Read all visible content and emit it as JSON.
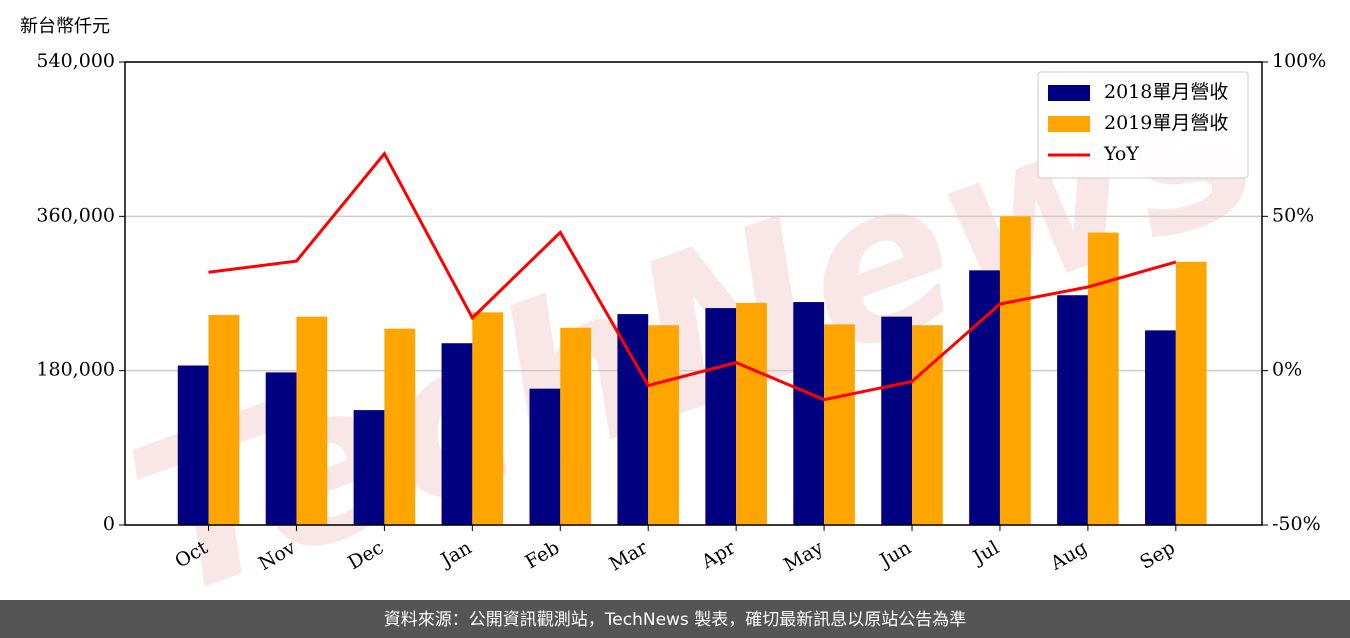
{
  "chart_data": {
    "type": "bar_line",
    "y_label": "新台幣仟元",
    "watermark": "TechNews",
    "source": "資料來源：公開資訊觀測站，TechNews 製表，確切最新訊息以原站公告為準",
    "categories": [
      "Oct",
      "Nov",
      "Dec",
      "Jan",
      "Feb",
      "Mar",
      "Apr",
      "May",
      "Jun",
      "Jul",
      "Aug",
      "Sep"
    ],
    "series": [
      {
        "name": "2018單月營收",
        "color": "#000080",
        "values": [
          186000,
          178000,
          134000,
          212000,
          159000,
          246000,
          253000,
          260000,
          243000,
          297000,
          268000,
          227000
        ]
      },
      {
        "name": "2019單月營收",
        "color": "#ffa500",
        "values": [
          245000,
          243000,
          229000,
          248000,
          230000,
          233000,
          259000,
          234000,
          233000,
          360000,
          341000,
          307000
        ]
      },
      {
        "name": "YoY",
        "color": "#ff0000",
        "type": "line",
        "axis": "y2",
        "values": [
          31.9,
          35.5,
          70.3,
          17.1,
          44.8,
          -4.8,
          2.6,
          -9.4,
          -3.5,
          21.6,
          27.1,
          35.2
        ]
      }
    ],
    "ylim": [
      0,
      540000
    ],
    "yticks": [
      0,
      {
        "value": 180000,
        "label": "180,000"
      },
      {
        "value": 360000,
        "label": "360,000"
      },
      {
        "value": 540000,
        "label": "540,000"
      }
    ],
    "y2lim": [
      -50,
      100
    ],
    "y2ticks": [
      {
        "value": -50,
        "label": "-50%"
      },
      {
        "value": 0,
        "label": "0%"
      },
      {
        "value": 50,
        "label": "50%"
      },
      {
        "value": 100,
        "label": "100%"
      }
    ],
    "grid": true,
    "legend": "upper right"
  }
}
